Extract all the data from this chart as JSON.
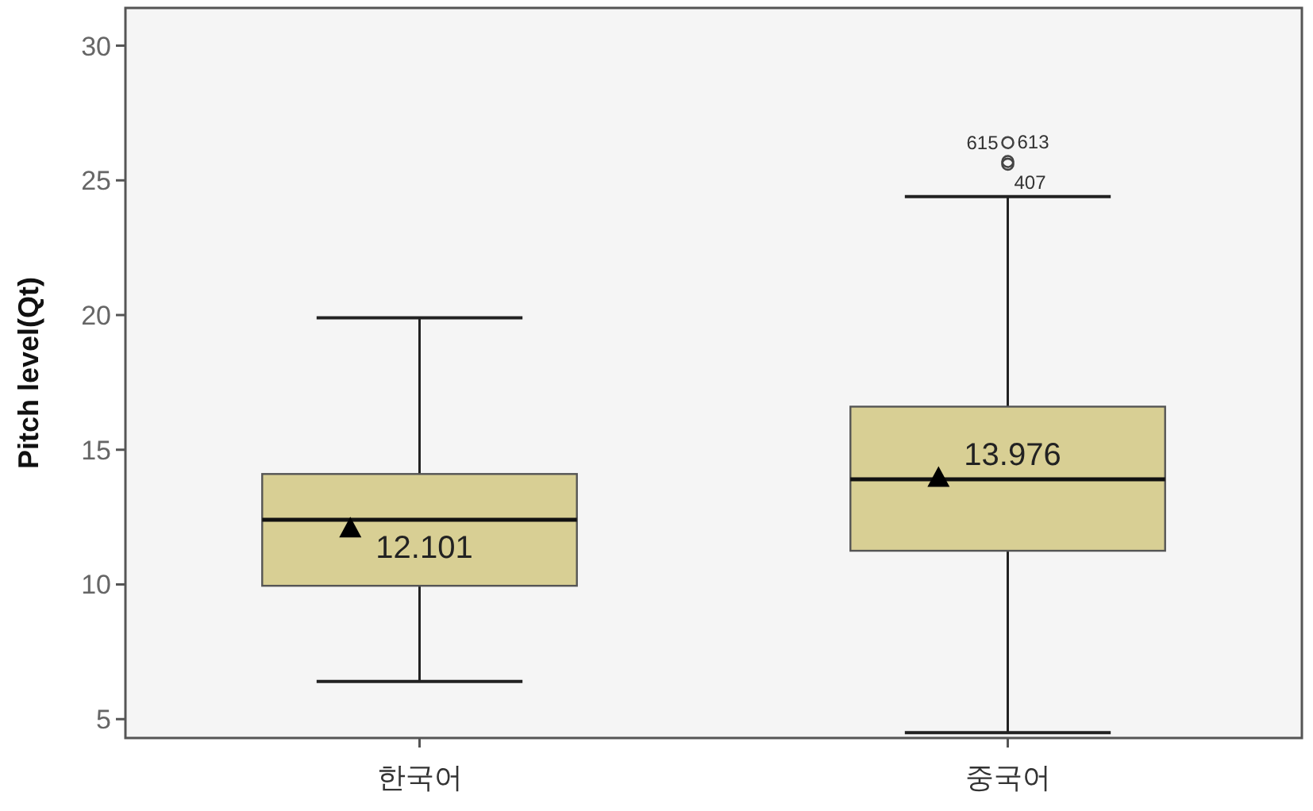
{
  "chart_data": {
    "type": "box",
    "ylabel": "Pitch level(Qt)",
    "categories": [
      "한국어",
      "중국어"
    ],
    "series": [
      {
        "color": "#d8cf94",
        "boxes": [
          {
            "low": 6.4,
            "q1": 9.95,
            "median": 12.4,
            "q3": 14.1,
            "high": 19.9,
            "mean": 12.101
          },
          {
            "low": 4.5,
            "q1": 11.25,
            "median": 13.9,
            "q3": 16.6,
            "high": 24.4,
            "mean": 13.976,
            "outliers": [
              26.4,
              25.6,
              25.7
            ]
          }
        ]
      }
    ],
    "ylim": [
      4.3,
      31.4
    ],
    "yticks": [
      5,
      10,
      15,
      20,
      25,
      30
    ],
    "marker": "triangle",
    "annotations": [
      "12.101",
      "13.976",
      "615",
      "613",
      "407"
    ]
  }
}
